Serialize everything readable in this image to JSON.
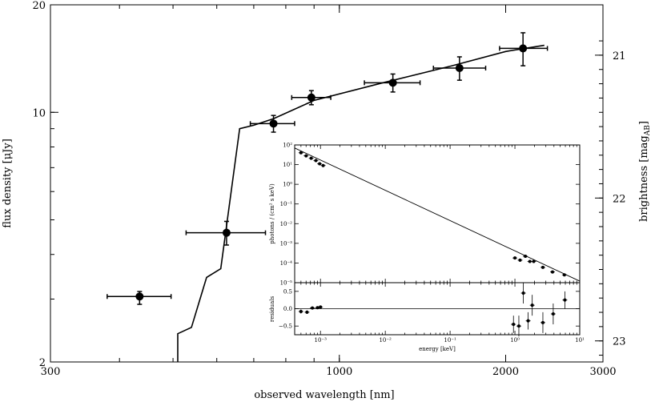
{
  "chart_data": [
    {
      "type": "scatter",
      "title": "",
      "xlabel": "observed wavelength [nm]",
      "ylabel": "flux density [μJy]",
      "y2label": "brightness [mag",
      "y2label_sub": "AB",
      "x_scale": "log",
      "y_scale": "log",
      "xlim": [
        300,
        3000
      ],
      "ylim": [
        2,
        20
      ],
      "x_ticks": [
        300,
        1000,
        2000,
        3000
      ],
      "x_tick_labels": [
        "300",
        "1000",
        "2000",
        "3000"
      ],
      "y_ticks": [
        2,
        10,
        20
      ],
      "y_tick_labels": [
        "2",
        "10",
        "20"
      ],
      "y2_ticks": [
        21,
        22,
        23
      ],
      "y2_tick_labels": [
        "21",
        "22",
        "23"
      ],
      "series": [
        {
          "points": [
            {
              "x": 435,
              "xlo": 380,
              "xhi": 496,
              "y": 3.05,
              "ylo": 2.9,
              "yhi": 3.15
            },
            {
              "x": 625,
              "xlo": 528,
              "xhi": 735,
              "y": 4.6,
              "ylo": 4.25,
              "yhi": 4.95
            },
            {
              "x": 760,
              "xlo": 690,
              "xhi": 830,
              "y": 9.3,
              "ylo": 8.8,
              "yhi": 9.8
            },
            {
              "x": 890,
              "xlo": 820,
              "xhi": 965,
              "y": 11.0,
              "ylo": 10.5,
              "yhi": 11.5
            },
            {
              "x": 1250,
              "xlo": 1110,
              "xhi": 1400,
              "y": 12.1,
              "ylo": 11.4,
              "yhi": 12.8
            },
            {
              "x": 1650,
              "xlo": 1480,
              "xhi": 1840,
              "y": 13.3,
              "ylo": 12.3,
              "yhi": 14.3
            },
            {
              "x": 2150,
              "xlo": 1950,
              "xhi": 2380,
              "y": 15.1,
              "ylo": 13.5,
              "yhi": 16.7
            }
          ]
        },
        {
          "type": "line",
          "x": [
            510,
            510,
            540,
            575,
            610,
            660,
            700,
            760,
            900,
            1200,
            1600,
            2000,
            2350
          ],
          "y": [
            2.0,
            2.4,
            2.5,
            3.45,
            3.65,
            9.0,
            9.2,
            9.6,
            10.8,
            12.1,
            13.5,
            14.8,
            15.4
          ]
        }
      ]
    },
    {
      "type": "scatter",
      "xlabel": "energy [keV]",
      "ylabel": "photons / (cm² s keV)",
      "x_scale": "log",
      "y_scale": "log",
      "xlim": [
        0.0004,
        10
      ],
      "ylim": [
        1e-05,
        100
      ],
      "x_ticks": [
        0.001,
        0.01,
        0.1,
        1,
        10
      ],
      "x_tick_labels": [
        "10⁻³",
        "10⁻²",
        "10⁻¹",
        "10⁰",
        "10¹"
      ],
      "y_ticks": [
        1e-05,
        0.0001,
        0.001,
        0.01,
        0.1,
        1,
        10,
        100
      ],
      "y_tick_labels": [
        "10⁻⁵",
        "10⁻⁴",
        "10⁻³",
        "10⁻²",
        "10⁻¹",
        "10⁰",
        "10¹",
        "10²"
      ],
      "series": [
        {
          "points": [
            {
              "x": 0.0005,
              "y": 40
            },
            {
              "x": 0.0006,
              "y": 28
            },
            {
              "x": 0.00072,
              "y": 21
            },
            {
              "x": 0.00085,
              "y": 16
            },
            {
              "x": 0.00097,
              "y": 11
            },
            {
              "x": 0.0011,
              "y": 9
            },
            {
              "x": 1.0,
              "y": 0.00018
            },
            {
              "x": 1.2,
              "y": 0.00014
            },
            {
              "x": 1.45,
              "y": 0.00022
            },
            {
              "x": 1.7,
              "y": 0.00012
            },
            {
              "x": 1.95,
              "y": 0.00012
            },
            {
              "x": 2.7,
              "y": 6e-05
            },
            {
              "x": 3.8,
              "y": 3.5e-05
            },
            {
              "x": 5.8,
              "y": 2.5e-05
            }
          ]
        },
        {
          "type": "line",
          "x": [
            0.0004,
            10
          ],
          "y": [
            70,
            1.2e-05
          ]
        }
      ]
    },
    {
      "type": "scatter",
      "ylabel": "residuals",
      "x_scale": "log",
      "xlim": [
        0.0004,
        10
      ],
      "ylim": [
        -0.75,
        0.75
      ],
      "y_ticks": [
        -0.5,
        0,
        0.5
      ],
      "y_tick_labels": [
        "−0.5",
        "0.0",
        "0.5"
      ],
      "series": [
        {
          "points": [
            {
              "x": 0.0005,
              "y": -0.08,
              "e": 0.06
            },
            {
              "x": 0.00062,
              "y": -0.1,
              "e": 0.05
            },
            {
              "x": 0.00075,
              "y": 0.02,
              "e": 0.04
            },
            {
              "x": 0.0009,
              "y": 0.03,
              "e": 0.04
            },
            {
              "x": 0.001,
              "y": 0.05,
              "e": 0.04
            },
            {
              "x": 0.95,
              "y": -0.45,
              "e": 0.25
            },
            {
              "x": 1.15,
              "y": -0.5,
              "e": 0.3
            },
            {
              "x": 1.35,
              "y": 0.45,
              "e": 0.3
            },
            {
              "x": 1.6,
              "y": -0.35,
              "e": 0.25
            },
            {
              "x": 1.85,
              "y": 0.1,
              "e": 0.3
            },
            {
              "x": 2.7,
              "y": -0.4,
              "e": 0.3
            },
            {
              "x": 3.9,
              "y": -0.15,
              "e": 0.3
            },
            {
              "x": 5.9,
              "y": 0.25,
              "e": 0.25
            }
          ]
        },
        {
          "type": "line",
          "x": [
            0.0004,
            10
          ],
          "y": [
            0,
            0
          ]
        }
      ]
    }
  ]
}
